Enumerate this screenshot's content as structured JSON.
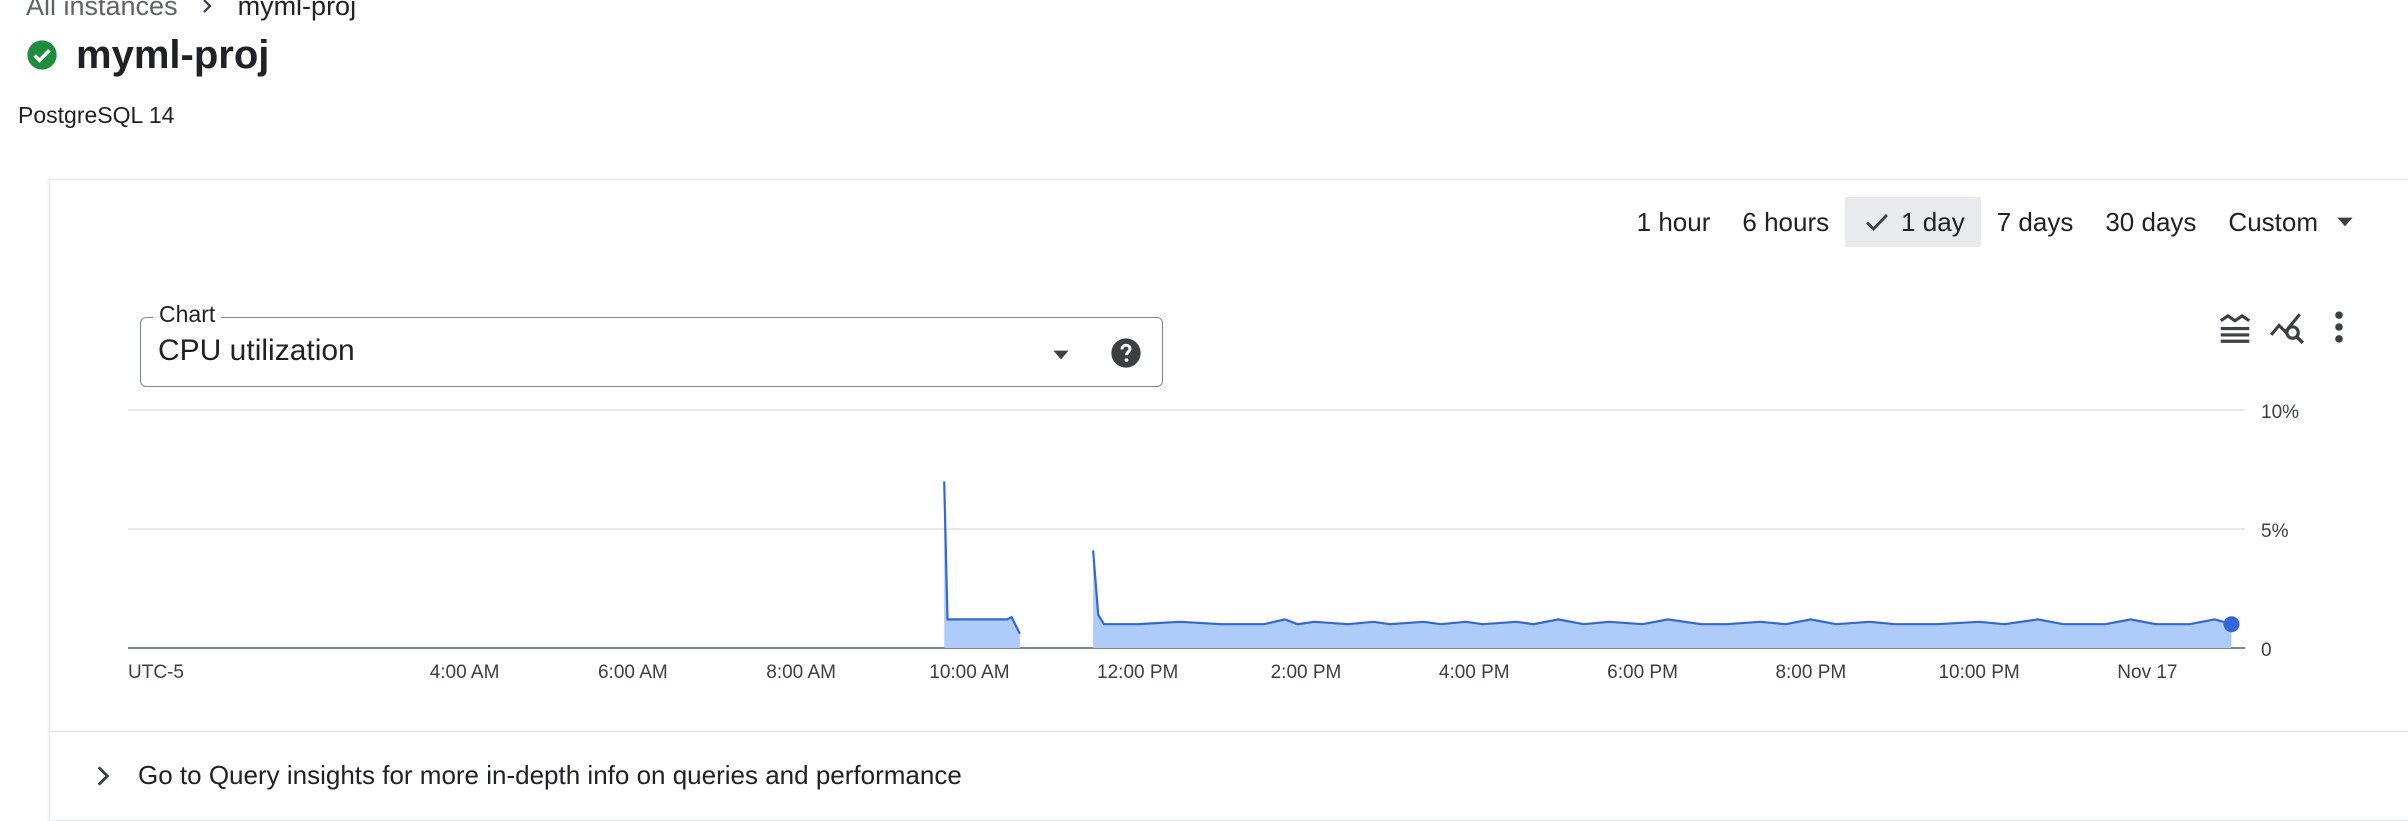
{
  "breadcrumb": {
    "root_label": "All instances",
    "current_label": "myml-proj"
  },
  "instance": {
    "name": "myml-proj",
    "version": "PostgreSQL 14",
    "status_color": "#1e8e3e"
  },
  "time_range": {
    "options": [
      "1 hour",
      "6 hours",
      "1 day",
      "7 days",
      "30 days",
      "Custom"
    ],
    "selected": "1 day"
  },
  "chart_selector": {
    "label": "Chart",
    "value": "CPU utilization"
  },
  "toolbar": {
    "icons": [
      "legend-toggle-icon",
      "explore-chart-icon",
      "more-vert-icon"
    ]
  },
  "footer": {
    "query_insights_text": "Go to Query insights for more in-depth info on queries and performance"
  },
  "chart_data": {
    "type": "area",
    "title": "",
    "xlabel": "",
    "ylabel": "",
    "timezone_label": "UTC-5",
    "x_tick_labels": [
      "4:00 AM",
      "6:00 AM",
      "8:00 AM",
      "10:00 AM",
      "12:00 PM",
      "2:00 PM",
      "4:00 PM",
      "6:00 PM",
      "8:00 PM",
      "10:00 PM",
      "Nov 17"
    ],
    "y_tick_labels": [
      "0",
      "5%",
      "10%"
    ],
    "ylim": [
      0,
      10
    ],
    "y_unit": "%",
    "x_range_hours": [
      1.0,
      25.0
    ],
    "series": [
      {
        "color": "#3367d6",
        "fill": "#aecbfa",
        "segments": [
          [
            [
              9.7,
              7.0
            ],
            [
              9.74,
              1.2
            ],
            [
              10.0,
              1.2
            ],
            [
              10.3,
              1.2
            ],
            [
              10.45,
              1.2
            ],
            [
              10.5,
              1.3
            ],
            [
              10.6,
              0.6
            ]
          ],
          [
            [
              11.47,
              4.1
            ],
            [
              11.53,
              1.4
            ],
            [
              11.6,
              1.0
            ],
            [
              12.0,
              1.0
            ],
            [
              12.5,
              1.1
            ],
            [
              13.0,
              1.0
            ],
            [
              13.5,
              1.0
            ],
            [
              13.75,
              1.2
            ],
            [
              13.9,
              1.0
            ],
            [
              14.1,
              1.1
            ],
            [
              14.5,
              1.0
            ],
            [
              14.8,
              1.1
            ],
            [
              15.0,
              1.0
            ],
            [
              15.4,
              1.1
            ],
            [
              15.6,
              1.0
            ],
            [
              15.9,
              1.1
            ],
            [
              16.1,
              1.0
            ],
            [
              16.5,
              1.1
            ],
            [
              16.7,
              1.0
            ],
            [
              17.0,
              1.2
            ],
            [
              17.3,
              1.0
            ],
            [
              17.6,
              1.1
            ],
            [
              18.0,
              1.0
            ],
            [
              18.3,
              1.2
            ],
            [
              18.7,
              1.0
            ],
            [
              19.0,
              1.0
            ],
            [
              19.4,
              1.1
            ],
            [
              19.7,
              1.0
            ],
            [
              20.0,
              1.2
            ],
            [
              20.3,
              1.0
            ],
            [
              20.7,
              1.1
            ],
            [
              21.0,
              1.0
            ],
            [
              21.5,
              1.0
            ],
            [
              22.0,
              1.1
            ],
            [
              22.3,
              1.0
            ],
            [
              22.7,
              1.2
            ],
            [
              23.0,
              1.0
            ],
            [
              23.5,
              1.0
            ],
            [
              23.8,
              1.2
            ],
            [
              24.1,
              1.0
            ],
            [
              24.5,
              1.0
            ],
            [
              24.8,
              1.2
            ],
            [
              25.0,
              1.0
            ]
          ]
        ],
        "last_point": [
          25.0,
          1.0
        ]
      }
    ]
  }
}
